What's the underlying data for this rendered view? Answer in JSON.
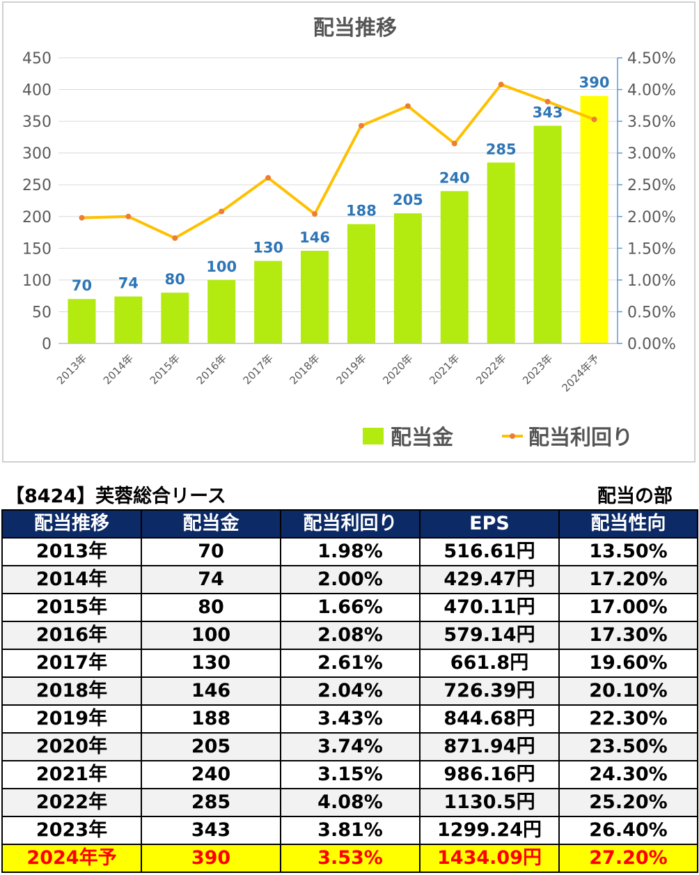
{
  "chart_data": {
    "type": "bar",
    "title": "配当推移",
    "categories": [
      "2013年",
      "2014年",
      "2015年",
      "2016年",
      "2017年",
      "2018年",
      "2019年",
      "2020年",
      "2021年",
      "2022年",
      "2023年",
      "2024年予"
    ],
    "series": [
      {
        "name": "配当金",
        "type": "bar",
        "axis": "left",
        "values": [
          70,
          74,
          80,
          100,
          130,
          146,
          188,
          205,
          240,
          285,
          343,
          390
        ]
      },
      {
        "name": "配当利回り",
        "type": "line",
        "axis": "right",
        "values": [
          1.98,
          2.0,
          1.66,
          2.08,
          2.61,
          2.04,
          3.43,
          3.74,
          3.15,
          4.08,
          3.81,
          3.53
        ]
      }
    ],
    "ylim": [
      0,
      450
    ],
    "yticks": [
      "0",
      "50",
      "100",
      "150",
      "200",
      "250",
      "300",
      "350",
      "400",
      "450"
    ],
    "y2lim": [
      0,
      4.5
    ],
    "y2ticks": [
      "0.00%",
      "0.50%",
      "1.00%",
      "1.50%",
      "2.00%",
      "2.50%",
      "3.00%",
      "3.50%",
      "4.00%",
      "4.50%"
    ],
    "colors": {
      "bar": "#b3ea0f",
      "bar_highlight": "#ffff00",
      "line": "#ffc000",
      "marker": "#ed7d31",
      "label": "#2e75b6"
    },
    "grid": true,
    "legend": "bottom-right"
  },
  "header": {
    "company": "【8424】芙蓉総合リース",
    "section": "配当の部"
  },
  "table": {
    "columns": [
      "配当推移",
      "配当金",
      "配当利回り",
      "EPS",
      "配当性向"
    ],
    "rows": [
      [
        "2013年",
        "70",
        "1.98%",
        "516.61円",
        "13.50%"
      ],
      [
        "2014年",
        "74",
        "2.00%",
        "429.47円",
        "17.20%"
      ],
      [
        "2015年",
        "80",
        "1.66%",
        "470.11円",
        "17.00%"
      ],
      [
        "2016年",
        "100",
        "2.08%",
        "579.14円",
        "17.30%"
      ],
      [
        "2017年",
        "130",
        "2.61%",
        "661.8円",
        "19.60%"
      ],
      [
        "2018年",
        "146",
        "2.04%",
        "726.39円",
        "20.10%"
      ],
      [
        "2019年",
        "188",
        "3.43%",
        "844.68円",
        "22.30%"
      ],
      [
        "2020年",
        "205",
        "3.74%",
        "871.94円",
        "23.50%"
      ],
      [
        "2021年",
        "240",
        "3.15%",
        "986.16円",
        "24.30%"
      ],
      [
        "2022年",
        "285",
        "4.08%",
        "1130.5円",
        "25.20%"
      ],
      [
        "2023年",
        "343",
        "3.81%",
        "1299.24円",
        "26.40%"
      ],
      [
        "2024年予",
        "390",
        "3.53%",
        "1434.09円",
        "27.20%"
      ]
    ]
  }
}
